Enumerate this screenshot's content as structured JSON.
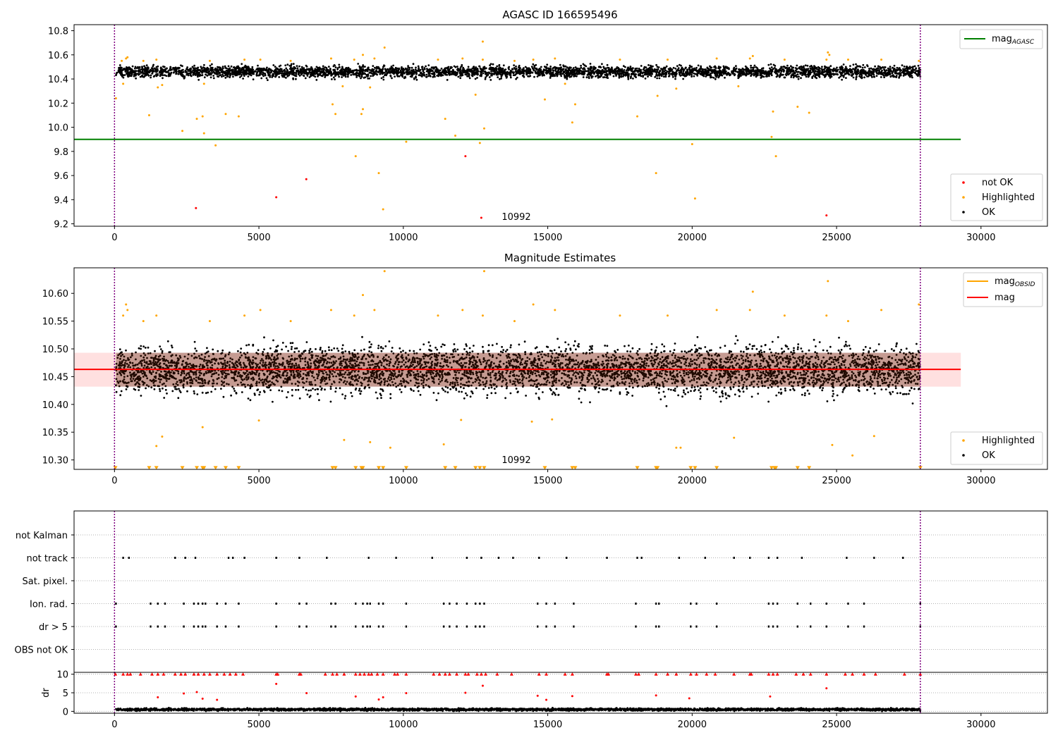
{
  "chart_data": [
    {
      "type": "scatter",
      "title": "AGASC ID 166595496",
      "xlim": [
        -1400,
        32300
      ],
      "ylim": [
        9.18,
        10.85
      ],
      "xticks": [
        0,
        5000,
        10000,
        15000,
        20000,
        25000,
        30000
      ],
      "yticks": [
        9.2,
        9.4,
        9.6,
        9.8,
        10.0,
        10.2,
        10.4,
        10.6,
        10.8
      ],
      "ytick_labels": [
        "9.2",
        "9.4",
        "9.6",
        "9.8",
        "10.0",
        "10.2",
        "10.4",
        "10.6",
        "10.8"
      ],
      "vlines": [
        0,
        27900
      ],
      "annotation": {
        "text": "10992",
        "x": 13400,
        "y": 9.25
      },
      "lines": [
        {
          "name": "mag",
          "sub": "AGASC",
          "y": 9.9,
          "x": [
            -1400,
            29300
          ],
          "color": "#008000"
        }
      ],
      "legend_lines": [
        {
          "name": "mag",
          "sub": "AGASC",
          "color": "#008000"
        }
      ],
      "legend_points": [
        {
          "name": "not OK",
          "color": "#ff0000"
        },
        {
          "name": "Highlighted",
          "color": "#ffa500"
        },
        {
          "name": "OK",
          "color": "#000000"
        }
      ],
      "series": [
        {
          "name": "OK",
          "color": "#000000",
          "band": {
            "x": [
              50,
              27900
            ],
            "y": [
              10.38,
              10.56
            ],
            "center": 10.46,
            "n": 4200
          }
        },
        {
          "name": "Highlighted",
          "color": "#ffa500",
          "x": [
            50,
            1200,
            1500,
            2350,
            2850,
            3050,
            3100,
            3500,
            3850,
            4300,
            7550,
            7650,
            7900,
            8350,
            8550,
            8600,
            8850,
            9150,
            9300,
            10100,
            11450,
            11800,
            12500,
            12650,
            12800,
            14900,
            15850,
            15950,
            18100,
            18750,
            18800,
            19450,
            20000,
            20100,
            21600,
            22750,
            22800,
            22900,
            23650,
            24050,
            250,
            400,
            450,
            1000,
            1450,
            3300,
            4500,
            5050,
            6100,
            7500,
            8300,
            9000,
            11200,
            12050,
            12750,
            13850,
            14500,
            15250,
            17500,
            19150,
            20850,
            22000,
            23200,
            24650,
            24750,
            25400,
            26550,
            27850,
            300,
            1650,
            3100,
            8600,
            9350,
            12750,
            15600,
            22100,
            24700
          ],
          "y": [
            10.24,
            10.1,
            10.33,
            9.97,
            10.07,
            10.09,
            9.95,
            9.85,
            10.11,
            10.09,
            10.19,
            10.11,
            10.34,
            9.76,
            10.11,
            10.15,
            10.33,
            9.62,
            9.32,
            9.88,
            10.07,
            9.93,
            10.27,
            9.87,
            9.99,
            10.23,
            10.04,
            10.19,
            10.09,
            9.62,
            10.26,
            10.32,
            9.86,
            9.41,
            10.34,
            9.92,
            10.13,
            9.76,
            10.17,
            10.12,
            10.55,
            10.57,
            10.58,
            10.55,
            10.56,
            10.55,
            10.56,
            10.56,
            10.55,
            10.57,
            10.56,
            10.57,
            10.56,
            10.57,
            10.56,
            10.55,
            10.56,
            10.57,
            10.56,
            10.56,
            10.57,
            10.57,
            10.56,
            10.56,
            10.6,
            10.56,
            10.56,
            10.55,
            10.36,
            10.35,
            10.36,
            10.6,
            10.66,
            10.71,
            10.36,
            10.59,
            10.62
          ]
        },
        {
          "name": "not OK",
          "color": "#ff0000",
          "x": [
            2820,
            5600,
            6640,
            12150,
            12700,
            24650
          ],
          "y": [
            9.33,
            9.42,
            9.57,
            9.76,
            9.25,
            9.27
          ]
        }
      ]
    },
    {
      "type": "scatter",
      "title": "Magnitude Estimates",
      "xlim": [
        -1400,
        32300
      ],
      "ylim": [
        10.283,
        10.646
      ],
      "xticks": [
        0,
        5000,
        10000,
        15000,
        20000,
        25000,
        30000
      ],
      "yticks": [
        10.3,
        10.35,
        10.4,
        10.45,
        10.5,
        10.55,
        10.6
      ],
      "ytick_labels": [
        "10.30",
        "10.35",
        "10.40",
        "10.45",
        "10.50",
        "10.55",
        "10.60"
      ],
      "vlines": [
        0,
        27900
      ],
      "annotation": {
        "text": "10992",
        "x": 13400,
        "y": 10.292
      },
      "shaded_band": {
        "y": [
          10.432,
          10.493
        ],
        "x": [
          -1400,
          29300
        ],
        "color": "#ff0000",
        "alpha": 0.12
      },
      "lines": [
        {
          "name": "mag",
          "y": 10.463,
          "x": [
            -1400,
            29300
          ],
          "color": "#ff0000"
        }
      ],
      "legend_lines": [
        {
          "name": "mag",
          "sub": "OBSID",
          "color": "#ffa500"
        },
        {
          "name": "mag",
          "color": "#ff0000"
        }
      ],
      "legend_points": [
        {
          "name": "Highlighted",
          "color": "#ffa500"
        },
        {
          "name": "OK",
          "color": "#000000"
        }
      ],
      "series": [
        {
          "name": "OK",
          "color": "#000000",
          "band": {
            "x": [
              50,
              27900
            ],
            "y": [
              10.39,
              10.545
            ],
            "center": 10.462,
            "n": 5200
          }
        },
        {
          "name": "Highlighted",
          "color": "#ffa500",
          "x": [
            300,
            400,
            450,
            1000,
            1450,
            3300,
            4500,
            5050,
            6100,
            7500,
            8300,
            9000,
            11200,
            12050,
            12750,
            13850,
            14500,
            15250,
            17500,
            19150,
            20850,
            22000,
            23200,
            24650,
            25400,
            26550,
            27850,
            1450,
            1650,
            3050,
            5000,
            7950,
            8850,
            9550,
            11400,
            12000,
            14450,
            15150,
            21450,
            19450,
            19600,
            24850,
            25550,
            26300,
            8600,
            22100,
            24700,
            9350,
            12800
          ],
          "y": [
            10.56,
            10.58,
            10.57,
            10.55,
            10.56,
            10.55,
            10.56,
            10.57,
            10.55,
            10.57,
            10.56,
            10.57,
            10.56,
            10.57,
            10.56,
            10.55,
            10.58,
            10.57,
            10.56,
            10.56,
            10.57,
            10.57,
            10.56,
            10.56,
            10.55,
            10.57,
            10.58,
            10.325,
            10.342,
            10.359,
            10.371,
            10.336,
            10.332,
            10.322,
            10.328,
            10.372,
            10.369,
            10.373,
            10.34,
            10.322,
            10.322,
            10.327,
            10.308,
            10.343,
            10.597,
            10.603,
            10.622,
            10.64,
            10.64
          ]
        },
        {
          "name": "Highlighted-below",
          "color": "#ffa500",
          "marker": "triangle-down",
          "x": [
            30,
            1200,
            1450,
            2350,
            2850,
            3050,
            3100,
            3500,
            3850,
            4300,
            7550,
            7650,
            8350,
            8550,
            8600,
            9150,
            9300,
            10100,
            11450,
            11800,
            12500,
            12650,
            12800,
            14900,
            15850,
            15950,
            18100,
            18750,
            18800,
            19950,
            20100,
            20850,
            22750,
            22850,
            22900,
            23650,
            24050,
            27900
          ],
          "y": [
            10.285,
            10.285,
            10.285,
            10.285,
            10.285,
            10.285,
            10.285,
            10.285,
            10.285,
            10.285,
            10.285,
            10.285,
            10.285,
            10.285,
            10.285,
            10.285,
            10.285,
            10.285,
            10.285,
            10.285,
            10.285,
            10.285,
            10.285,
            10.285,
            10.285,
            10.285,
            10.285,
            10.285,
            10.285,
            10.285,
            10.285,
            10.285,
            10.285,
            10.285,
            10.285,
            10.285,
            10.285,
            10.285
          ]
        }
      ]
    },
    {
      "type": "scatter",
      "title": "",
      "xlim": [
        -1400,
        32300
      ],
      "categories": [
        "not Kalman",
        "not track",
        "Sat. pixel.",
        "Ion. rad.",
        "dr > 5",
        "OBS not OK"
      ],
      "vlines": [
        0,
        27900
      ],
      "flags": {
        "not track": [
          300,
          500,
          2100,
          2450,
          2800,
          3950,
          4100,
          4500,
          5600,
          6400,
          7350,
          8800,
          9750,
          11000,
          12200,
          12700,
          13300,
          13800,
          14700,
          15650,
          17050,
          18100,
          18250,
          19550,
          20450,
          21450,
          22000,
          22650,
          22950,
          23800,
          25350,
          26300,
          27300
        ],
        "Ion. rad.": [
          50,
          1250,
          1500,
          1750,
          2400,
          2750,
          2900,
          3050,
          3150,
          3550,
          3850,
          4300,
          5600,
          6400,
          6650,
          7500,
          7650,
          8350,
          8600,
          8750,
          8850,
          9150,
          9300,
          10100,
          11400,
          11600,
          11850,
          12200,
          12500,
          12650,
          12800,
          14650,
          14950,
          15250,
          15900,
          18050,
          18750,
          18850,
          19950,
          20150,
          20850,
          22650,
          22800,
          22950,
          23650,
          24100,
          24650,
          25400,
          25950,
          27900
        ],
        "dr > 5": [
          50,
          1250,
          1500,
          1750,
          2400,
          2750,
          2900,
          3050,
          3150,
          3550,
          3850,
          4300,
          5600,
          6400,
          6650,
          7500,
          7650,
          8350,
          8600,
          8750,
          8850,
          9150,
          9300,
          10100,
          11400,
          11600,
          11850,
          12200,
          12500,
          12650,
          12800,
          14650,
          14950,
          15250,
          15900,
          18050,
          18750,
          18850,
          19950,
          20150,
          20850,
          22650,
          22800,
          22950,
          23650,
          24100,
          24650,
          25400,
          25950,
          27900
        ]
      }
    },
    {
      "type": "scatter",
      "title": "",
      "ylabel": "dr",
      "xlim": [
        -1400,
        32300
      ],
      "ylim": [
        -0.5,
        10.5
      ],
      "xticks": [
        0,
        5000,
        10000,
        15000,
        20000,
        25000,
        30000
      ],
      "yticks": [
        0,
        5,
        10
      ],
      "ytick_labels": [
        "0",
        "5",
        "10"
      ],
      "vlines": [
        0,
        27900
      ],
      "series": [
        {
          "name": "OK",
          "color": "#000000",
          "band": {
            "x": [
              50,
              27900
            ],
            "y": [
              0,
              1.2
            ],
            "center": 0.5,
            "n": 3500
          }
        },
        {
          "name": "dr-high",
          "color": "#ff0000",
          "marker": "triangle-up",
          "x": [
            30,
            300,
            450,
            550,
            900,
            1300,
            1500,
            1700,
            2100,
            2300,
            2450,
            2750,
            2900,
            3100,
            3300,
            3550,
            3800,
            4000,
            4200,
            4450,
            5600,
            5650,
            6400,
            6450,
            7300,
            7550,
            7700,
            7950,
            8350,
            8500,
            8650,
            8800,
            8900,
            9100,
            9300,
            9700,
            9800,
            10100,
            11050,
            11250,
            11450,
            11600,
            11850,
            12150,
            12250,
            12550,
            12700,
            12850,
            13250,
            13750,
            14700,
            14950,
            15600,
            15850,
            17050,
            17100,
            18050,
            18150,
            18750,
            19150,
            19450,
            19950,
            20150,
            20500,
            20800,
            21450,
            22000,
            22050,
            22650,
            22800,
            22950,
            23600,
            23850,
            24100,
            24650,
            25300,
            25550,
            25950,
            26350,
            27350,
            27900
          ],
          "y": [
            10,
            10,
            10,
            10,
            10,
            10,
            10,
            10,
            10,
            10,
            10,
            10,
            10,
            10,
            10,
            10,
            10,
            10,
            10,
            10,
            10,
            10,
            10,
            10,
            10,
            10,
            10,
            10,
            10,
            10,
            10,
            10,
            10,
            10,
            10,
            10,
            10,
            10,
            10,
            10,
            10,
            10,
            10,
            10,
            10,
            10,
            10,
            10,
            10,
            10,
            10,
            10,
            10,
            10,
            10,
            10,
            10,
            10,
            10,
            10,
            10,
            10,
            10,
            10,
            10,
            10,
            10,
            10,
            10,
            10,
            10,
            10,
            10,
            10,
            10,
            10,
            10,
            10,
            10,
            10,
            10
          ]
        },
        {
          "name": "dr-mid",
          "color": "#ff0000",
          "x": [
            1500,
            2400,
            2850,
            3050,
            3550,
            5600,
            6650,
            8350,
            9150,
            9300,
            10100,
            12150,
            12750,
            14650,
            14950,
            15850,
            18750,
            19900,
            22700,
            24650
          ],
          "y": [
            3.8,
            4.8,
            5.2,
            3.4,
            3.1,
            7.4,
            4.9,
            4.0,
            3.2,
            3.8,
            4.9,
            5.0,
            6.9,
            4.2,
            3.1,
            4.1,
            4.3,
            3.5,
            4.0,
            6.2
          ]
        }
      ]
    }
  ]
}
